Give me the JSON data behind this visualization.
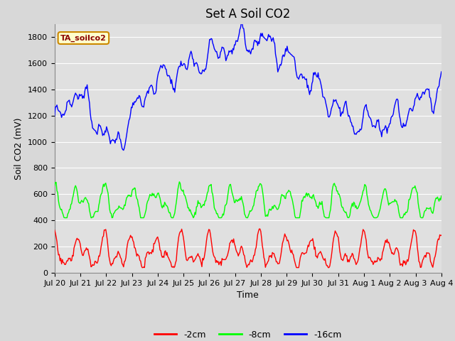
{
  "title": "Set A Soil CO2",
  "xlabel": "Time",
  "ylabel": "Soil CO2 (mV)",
  "annotation_label": "TA_soilco2",
  "legend_labels": [
    "-2cm",
    "-8cm",
    "-16cm"
  ],
  "legend_colors": [
    "#ff0000",
    "#00ff00",
    "#0000ff"
  ],
  "ylim": [
    0,
    1900
  ],
  "yticks": [
    0,
    200,
    400,
    600,
    800,
    1000,
    1200,
    1400,
    1600,
    1800
  ],
  "xtick_labels": [
    "Jul 20",
    "Jul 21",
    "Jul 22",
    "Jul 23",
    "Jul 24",
    "Jul 25",
    "Jul 26",
    "Jul 27",
    "Jul 28",
    "Jul 29",
    "Jul 30",
    "Jul 31",
    "Aug 1",
    "Aug 2",
    "Aug 3",
    "Aug 4"
  ],
  "n_days": 15,
  "n_points": 500,
  "fig_bg": "#d8d8d8",
  "ax_bg": "#e0e0e0",
  "title_fontsize": 12,
  "axis_label_fontsize": 9,
  "tick_fontsize": 8,
  "line_width": 1.0,
  "grid_color": "#ffffff",
  "annot_text_color": "#8B0000",
  "annot_bg": "#ffffcc",
  "annot_edge": "#cc8800"
}
